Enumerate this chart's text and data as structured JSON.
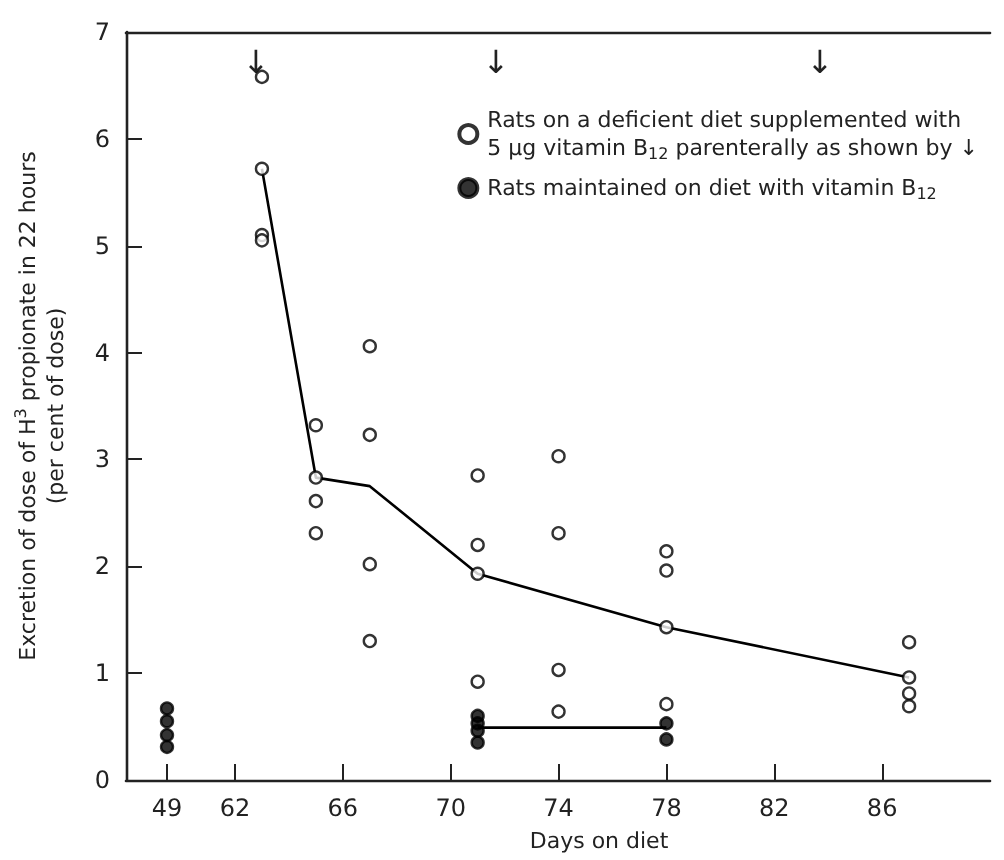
{
  "chart_data": [
    {
      "type": "scatter",
      "ylabel": "Excretion of dose of H$^{3}$ propionate in 22 hours\n(per cent of dose)",
      "categories": [
        "49"
      ],
      "ylim": [
        0,
        7
      ],
      "yticks": [
        0,
        1,
        2,
        3,
        4,
        5,
        6,
        7
      ],
      "grid": false,
      "marker": "circle",
      "series": [
        {
          "color": "#000000",
          "x": [
            "49",
            "49",
            "49",
            "49"
          ],
          "values": [
            0.67,
            0.55,
            0.42,
            0.31
          ]
        }
      ]
    },
    {
      "type": "scatter",
      "xlabel": "Days on diet",
      "xlim": [
        61,
        90
      ],
      "xticks": [
        62,
        66,
        70,
        74,
        78,
        82,
        86
      ],
      "ylim": [
        0,
        7
      ],
      "yticks": [
        0,
        1,
        2,
        3,
        4,
        5,
        6,
        7
      ],
      "tick_labels": "x",
      "grid": false,
      "legend": "top right",
      "marker": "circle",
      "series": [
        {
          "name": "Rats on a deficient diet supplemented with\n5 µg vitamin B$_{12}$ parenterally as shown by ↓",
          "color": "#ffffff",
          "x": [
            63,
            63,
            63,
            63,
            65,
            65,
            65,
            65,
            67,
            67,
            67,
            67,
            71,
            71,
            71,
            71,
            74,
            74,
            74,
            74,
            78,
            78,
            78,
            78,
            87,
            87,
            87,
            87
          ],
          "values": [
            6.58,
            5.72,
            5.1,
            5.05,
            3.32,
            2.83,
            2.61,
            2.31,
            4.06,
            3.23,
            2.02,
            1.3,
            2.85,
            2.2,
            1.93,
            0.92,
            3.03,
            2.31,
            1.03,
            0.64,
            2.14,
            1.96,
            1.43,
            0.71,
            1.29,
            0.96,
            0.81,
            0.69
          ]
        },
        {
          "name": "Rats maintained on diet with vitamin B$_{12}$",
          "color": "#000000",
          "x": [
            71,
            71,
            71,
            71,
            78,
            78
          ],
          "values": [
            0.6,
            0.53,
            0.46,
            0.35,
            0.53,
            0.38
          ]
        },
        {
          "type": "line",
          "color": "#000000",
          "marker": "none",
          "x": [
            63,
            65,
            67,
            71,
            78,
            87
          ],
          "values": [
            5.72,
            2.83,
            2.75,
            1.93,
            1.43,
            0.96
          ]
        },
        {
          "type": "line",
          "color": "#000000",
          "marker": "none",
          "x": [
            71,
            78
          ],
          "values": [
            0.49,
            0.49
          ]
        }
      ],
      "annotations": [
        "↓",
        "↓",
        "↓"
      ]
    }
  ]
}
